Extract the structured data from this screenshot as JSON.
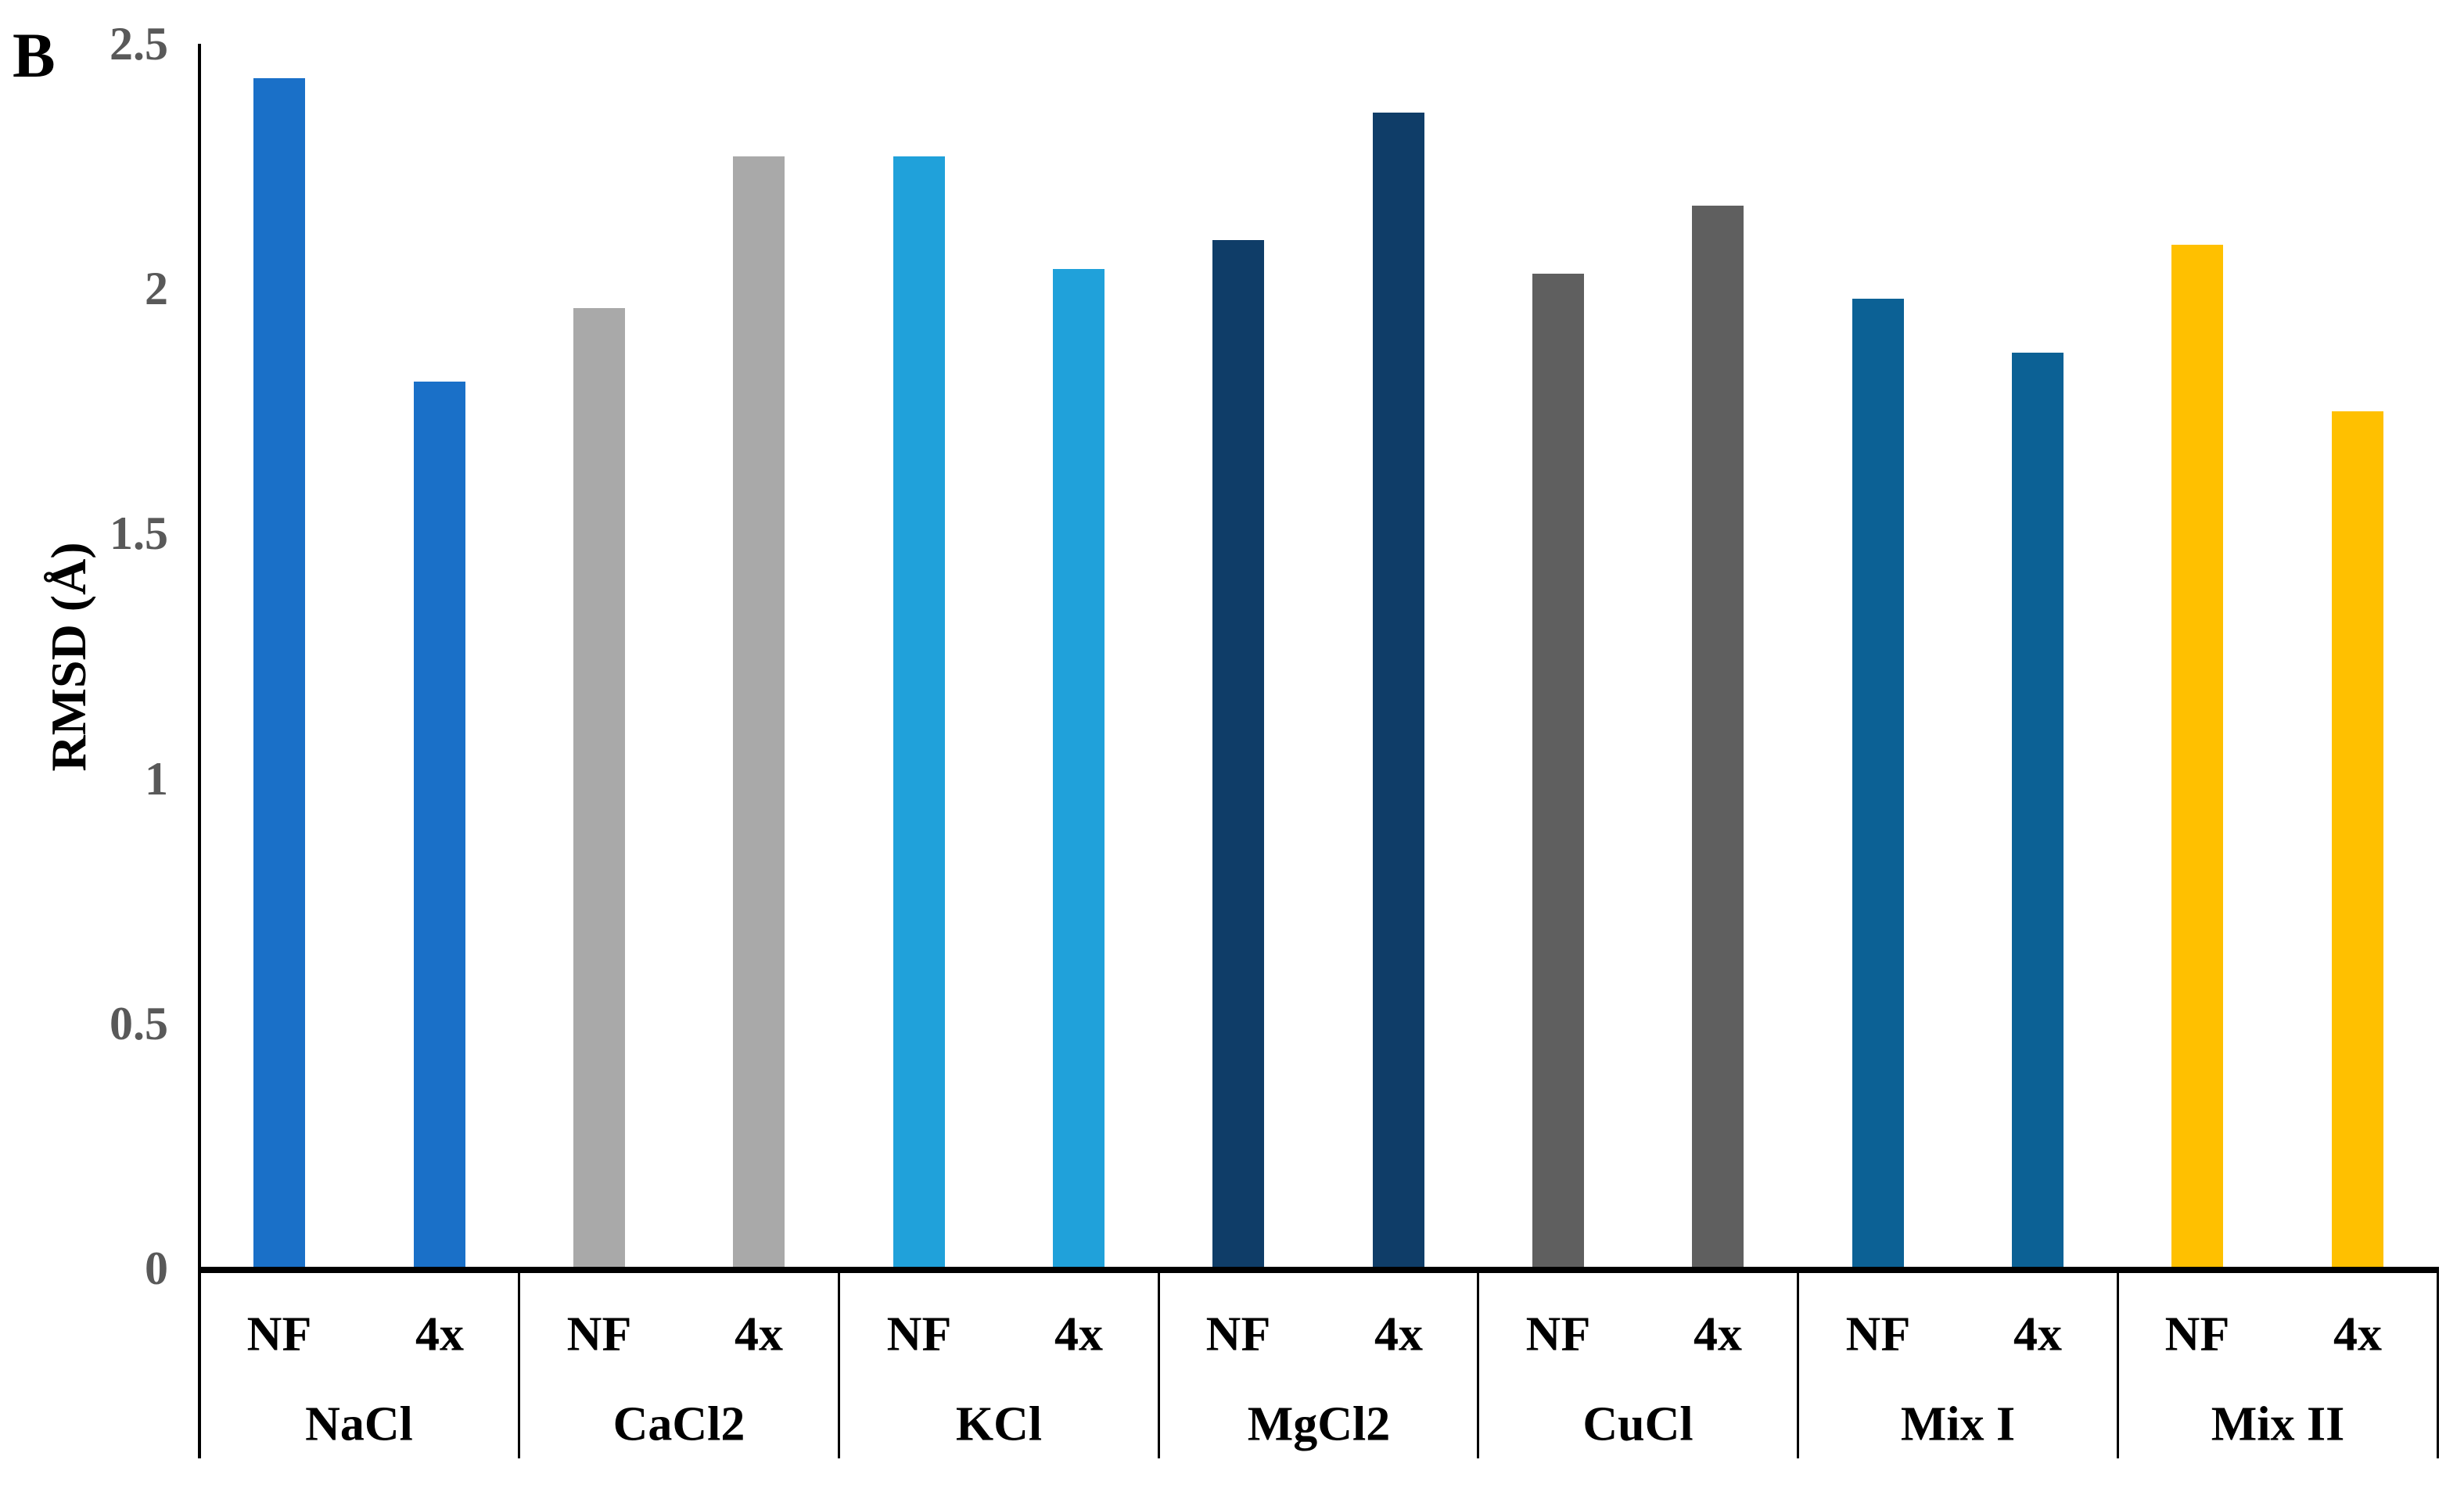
{
  "panel_label": "B",
  "chart_data": {
    "type": "bar",
    "title": "",
    "xlabel": "",
    "ylabel": "RMSD (Å)",
    "ylim": [
      0,
      2.5
    ],
    "grid": false,
    "legend_position": "none",
    "y_ticks": [
      {
        "value": 2.5,
        "label": "2.5"
      },
      {
        "value": 2,
        "label": "2"
      },
      {
        "value": 1.5,
        "label": "1.5"
      },
      {
        "value": 1,
        "label": "1"
      },
      {
        "value": 0.5,
        "label": "0.5"
      },
      {
        "value": 0,
        "label": "0"
      }
    ],
    "series_labels": [
      "NF",
      "4x"
    ],
    "groups": [
      {
        "category": "NaCl",
        "color": "#1a70c8",
        "values": [
          2.43,
          1.81
        ]
      },
      {
        "category": "CaCl2",
        "color": "#a9a9a9",
        "values": [
          1.96,
          2.27
        ]
      },
      {
        "category": "KCl",
        "color": "#20a1da",
        "values": [
          2.27,
          2.04
        ]
      },
      {
        "category": "MgCl2",
        "color": "#0f3d68",
        "values": [
          2.1,
          2.36
        ]
      },
      {
        "category": "CuCl",
        "color": "#5f5f5f",
        "values": [
          2.03,
          2.17
        ]
      },
      {
        "category": "Mix I",
        "color": "#0c6195",
        "values": [
          1.98,
          1.87
        ]
      },
      {
        "category": "Mix II",
        "color": "#ffc000",
        "values": [
          2.09,
          1.75
        ]
      }
    ],
    "colors": {
      "axis_line": "#000000",
      "tick_label": "#595959",
      "text": "#000000",
      "background": "#ffffff"
    }
  }
}
